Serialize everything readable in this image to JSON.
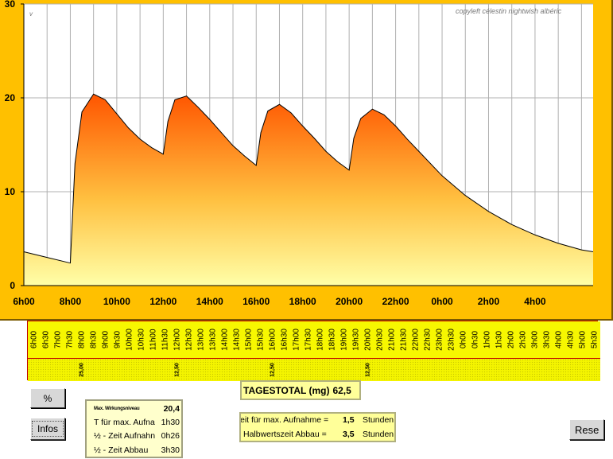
{
  "chart": {
    "copyleft": "copyleft  célestin  nightwish  albéric",
    "corner_mark": "v",
    "colors": {
      "frame": "#ffc000",
      "fill_top": "#ff5500",
      "fill_bottom": "#ffffa0"
    }
  },
  "chart_data": {
    "type": "area",
    "x_tick_labels": [
      "6h00",
      "8h00",
      "10h00",
      "12h00",
      "14h00",
      "16h00",
      "18h00",
      "20h00",
      "22h00",
      "0h00",
      "2h00",
      "4h00"
    ],
    "y_ticks": [
      0,
      10,
      20,
      30
    ],
    "ylim": [
      0,
      30
    ],
    "xlim_hours": [
      6,
      30.5
    ],
    "grid": true,
    "series": [
      {
        "x_hours": [
          6,
          7,
          8,
          8.2,
          8.5,
          9,
          9.5,
          10,
          10.5,
          11,
          11.5,
          12,
          12.2,
          12.5,
          13,
          13.5,
          14,
          14.5,
          15,
          15.5,
          16,
          16.2,
          16.5,
          17,
          17.5,
          18,
          18.5,
          19,
          19.5,
          20,
          20.2,
          20.5,
          21,
          21.5,
          22,
          22.5,
          23,
          24,
          25,
          26,
          27,
          28,
          29,
          30,
          30.5
        ],
        "values": [
          3.6,
          3.0,
          2.4,
          13.0,
          18.5,
          20.4,
          19.8,
          18.3,
          16.8,
          15.6,
          14.7,
          14.0,
          17.5,
          19.8,
          20.2,
          19.0,
          17.7,
          16.3,
          14.9,
          13.8,
          12.8,
          16.3,
          18.6,
          19.3,
          18.4,
          17.0,
          15.7,
          14.3,
          13.2,
          12.3,
          15.7,
          17.8,
          18.8,
          18.2,
          17.0,
          15.6,
          14.3,
          11.7,
          9.6,
          7.9,
          6.5,
          5.4,
          4.5,
          3.8,
          3.6
        ]
      }
    ]
  },
  "time_slots": [
    {
      "label": "6h00",
      "dose": ""
    },
    {
      "label": "6h30",
      "dose": ""
    },
    {
      "label": "7h00",
      "dose": ""
    },
    {
      "label": "7h30",
      "dose": ""
    },
    {
      "label": "8h00",
      "dose": "25,00"
    },
    {
      "label": "8h30",
      "dose": ""
    },
    {
      "label": "9h00",
      "dose": ""
    },
    {
      "label": "9h30",
      "dose": ""
    },
    {
      "label": "10h00",
      "dose": ""
    },
    {
      "label": "10h30",
      "dose": ""
    },
    {
      "label": "11h00",
      "dose": ""
    },
    {
      "label": "11h30",
      "dose": ""
    },
    {
      "label": "12h00",
      "dose": "12,50"
    },
    {
      "label": "12h30",
      "dose": ""
    },
    {
      "label": "13h00",
      "dose": ""
    },
    {
      "label": "13h30",
      "dose": ""
    },
    {
      "label": "14h00",
      "dose": ""
    },
    {
      "label": "14h30",
      "dose": ""
    },
    {
      "label": "15h00",
      "dose": ""
    },
    {
      "label": "15h30",
      "dose": ""
    },
    {
      "label": "16h00",
      "dose": "12,50"
    },
    {
      "label": "16h30",
      "dose": ""
    },
    {
      "label": "17h00",
      "dose": ""
    },
    {
      "label": "17h30",
      "dose": ""
    },
    {
      "label": "18h00",
      "dose": ""
    },
    {
      "label": "18h30",
      "dose": ""
    },
    {
      "label": "19h00",
      "dose": ""
    },
    {
      "label": "19h30",
      "dose": ""
    },
    {
      "label": "20h00",
      "dose": "12,50"
    },
    {
      "label": "20h30",
      "dose": ""
    },
    {
      "label": "21h00",
      "dose": ""
    },
    {
      "label": "21h30",
      "dose": ""
    },
    {
      "label": "22h00",
      "dose": ""
    },
    {
      "label": "22h30",
      "dose": ""
    },
    {
      "label": "23h00",
      "dose": ""
    },
    {
      "label": "23h30",
      "dose": ""
    },
    {
      "label": "0h00",
      "dose": ""
    },
    {
      "label": "0h30",
      "dose": ""
    },
    {
      "label": "1h00",
      "dose": ""
    },
    {
      "label": "1h30",
      "dose": ""
    },
    {
      "label": "2h00",
      "dose": ""
    },
    {
      "label": "2h30",
      "dose": ""
    },
    {
      "label": "3h00",
      "dose": ""
    },
    {
      "label": "3h30",
      "dose": ""
    },
    {
      "label": "4h00",
      "dose": ""
    },
    {
      "label": "4h30",
      "dose": ""
    },
    {
      "label": "5h00",
      "dose": ""
    },
    {
      "label": "5h30",
      "dose": ""
    }
  ],
  "buttons": {
    "percent": "%",
    "infos": "Infos",
    "reset": "Rese"
  },
  "info": {
    "max_label": "Max. Wirkungsniveau",
    "max_value": "20,4",
    "t_max_label": "T für max. Aufna",
    "t_max_value": "1h30",
    "half_up_label": "½ - Zeit Aufnahn",
    "half_up_value": "0h26",
    "half_down_label": "½ - Zeit Abbau",
    "half_down_value": "3h30"
  },
  "total": {
    "label": "TAGESTOTAL (mg)",
    "value": "62,5"
  },
  "params": {
    "row1_label": "eit für max. Aufnahme  =",
    "row1_value": "1,5",
    "row1_unit": "Stunden",
    "row2_label": "Halbwertszeit Abbau  =",
    "row2_value": "3,5",
    "row2_unit": "Stunden"
  }
}
